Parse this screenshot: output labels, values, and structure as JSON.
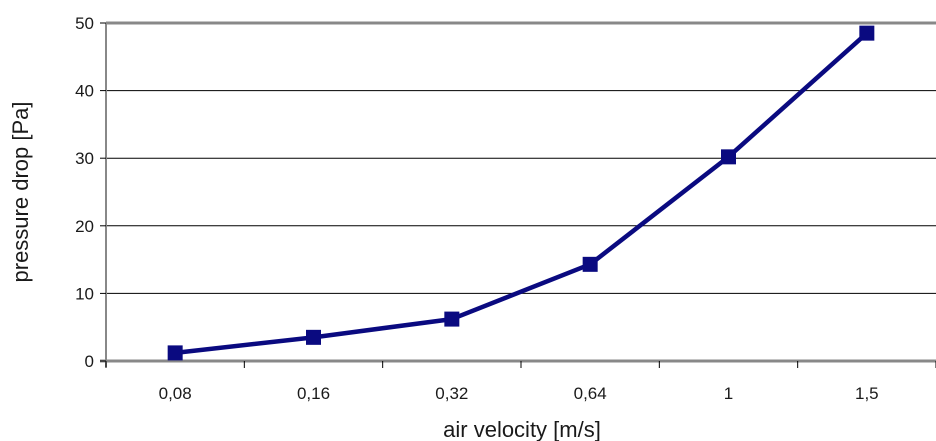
{
  "chart_data": {
    "type": "line",
    "title": "",
    "xlabel": "air velocity  [m/s]",
    "ylabel": "pressure drop  [Pa]",
    "categories": [
      "0,08",
      "0,16",
      "0,32",
      "0,64",
      "1",
      "1,5"
    ],
    "x_scale": "categorical",
    "series": [
      {
        "values": [
          1.2,
          3.5,
          6.2,
          14.3,
          30.2,
          48.5
        ],
        "color": "#0a0a80",
        "marker": "square"
      }
    ],
    "ylim": [
      0,
      50
    ],
    "yticks": [
      0,
      10,
      20,
      30,
      40,
      50
    ],
    "grid": "horizontal",
    "legend": "none"
  }
}
